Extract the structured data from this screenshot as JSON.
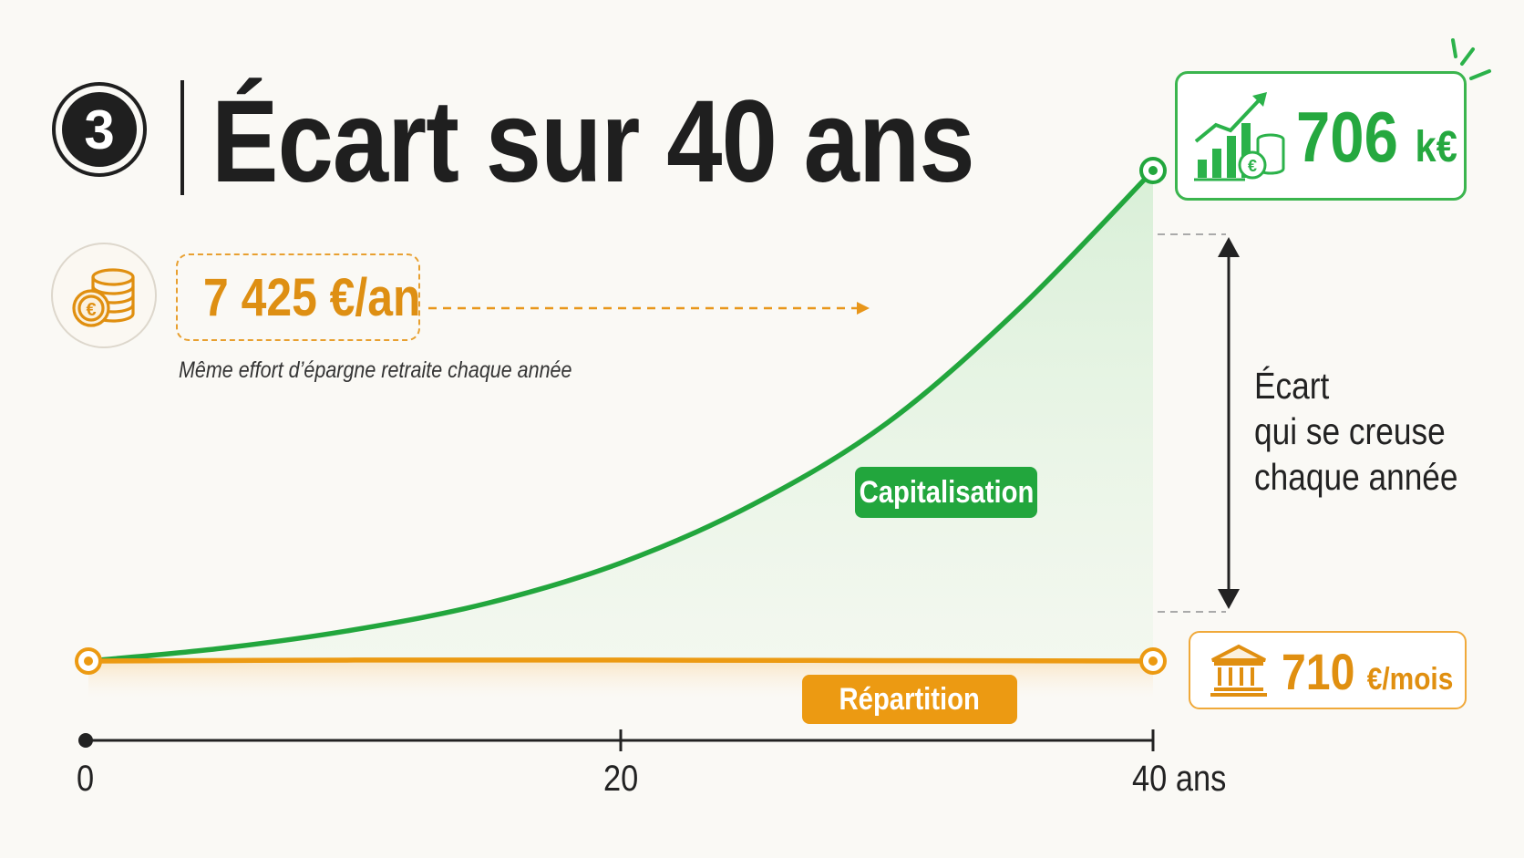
{
  "header": {
    "step_number": "3",
    "title": "Écart sur 40 ans"
  },
  "effort": {
    "amount": "7 425 €/an",
    "caption": "Même effort d’épargne retraite chaque année"
  },
  "gap": {
    "line1": "Écart",
    "line2": "qui se creuse",
    "line3": "chaque année"
  },
  "colors": {
    "capitalisation": "#22a63d",
    "repartition": "#ec9a12",
    "text": "#1f1f1f"
  },
  "icons": [
    "coins-euro-icon",
    "growth-chart-icon",
    "bank-icon",
    "gap-arrow-icon",
    "sparkle-icon"
  ],
  "chart_data": {
    "type": "line",
    "title": "Écart sur 40 ans",
    "x_ticks": [
      "0",
      "20",
      "40 ans"
    ],
    "xlim": [
      0,
      40
    ],
    "grid": false,
    "series": [
      {
        "name": "Capitalisation",
        "color": "#22a63d",
        "end_value_label": "706",
        "end_value_unit": "k€",
        "points": [
          [
            0,
            0
          ],
          [
            5,
            2.6
          ],
          [
            10,
            6.4
          ],
          [
            15,
            11.8
          ],
          [
            20,
            20
          ],
          [
            25,
            32
          ],
          [
            30,
            48.5
          ],
          [
            35,
            72
          ],
          [
            40,
            100
          ]
        ]
      },
      {
        "name": "Répartition",
        "color": "#ec9a12",
        "end_value_label": "710",
        "end_value_unit": "€/mois",
        "points": [
          [
            0,
            0
          ],
          [
            10,
            0.2
          ],
          [
            20,
            0.2
          ],
          [
            30,
            0.1
          ],
          [
            40,
            0
          ]
        ]
      }
    ]
  }
}
